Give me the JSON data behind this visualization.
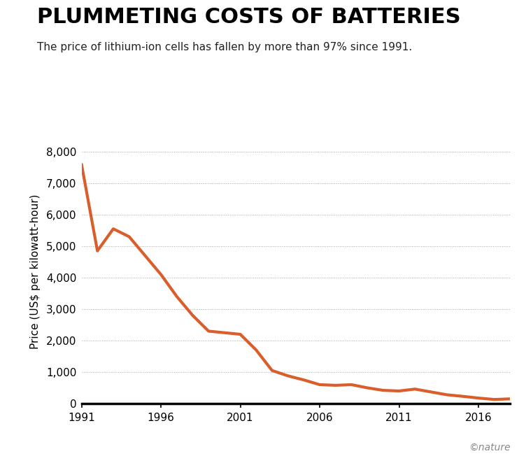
{
  "title": "PLUMMETING COSTS OF BATTERIES",
  "subtitle": "The price of lithium-ion cells has fallen by more than 97% since 1991.",
  "ylabel": "Price (US$ per kilowatt-hour)",
  "line_color": "#D95E2B",
  "line_width": 3.0,
  "background_color": "#ffffff",
  "watermark": "©nature",
  "years": [
    1991,
    1992,
    1993,
    1994,
    1995,
    1996,
    1997,
    1998,
    1999,
    2000,
    2001,
    2002,
    2003,
    2004,
    2005,
    2006,
    2007,
    2008,
    2009,
    2010,
    2011,
    2012,
    2013,
    2014,
    2015,
    2016,
    2017,
    2018
  ],
  "prices": [
    7600,
    4850,
    5550,
    5300,
    4700,
    4100,
    3400,
    2800,
    2300,
    2250,
    2200,
    1700,
    1050,
    880,
    750,
    600,
    580,
    600,
    500,
    420,
    400,
    460,
    370,
    280,
    230,
    175,
    130,
    150
  ],
  "xlim": [
    1991,
    2018
  ],
  "ylim": [
    0,
    8400
  ],
  "yticks": [
    0,
    1000,
    2000,
    3000,
    4000,
    5000,
    6000,
    7000,
    8000
  ],
  "ytick_labels": [
    "0",
    "1,000",
    "2,000",
    "3,000",
    "4,000",
    "5,000",
    "6,000",
    "7,000",
    "8,000"
  ],
  "xticks": [
    1991,
    1996,
    2001,
    2006,
    2011,
    2016
  ],
  "grid_color": "#aaaaaa",
  "grid_linestyle": ":",
  "grid_linewidth": 0.7,
  "spine_bottom_linewidth": 2.5,
  "title_fontsize": 22,
  "subtitle_fontsize": 11,
  "tick_fontsize": 11,
  "ylabel_fontsize": 11,
  "watermark_fontsize": 10
}
